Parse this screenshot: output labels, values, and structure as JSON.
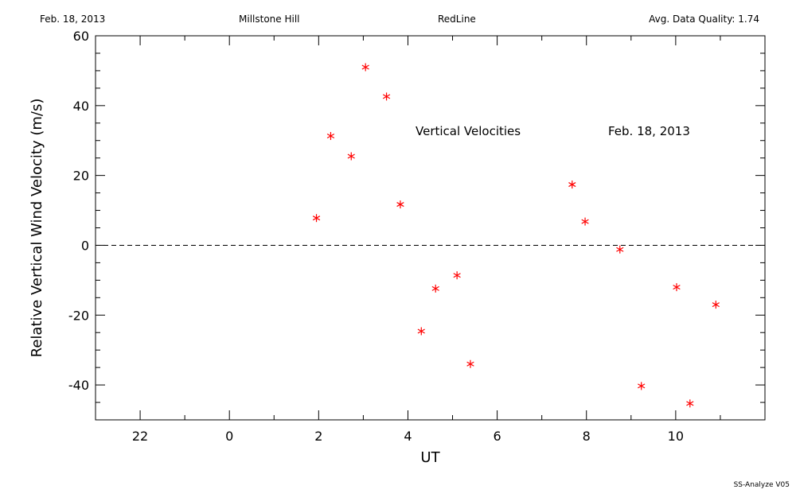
{
  "header": {
    "date": "Feb. 18, 2013",
    "site": "Millstone Hill",
    "instrument": "RedLine",
    "quality": "Avg. Data Quality: 1.74"
  },
  "footer": {
    "program": "SS-Analyze V05"
  },
  "chart_data": {
    "type": "scatter",
    "annotations": [
      "Vertical Velocities",
      "Feb. 18, 2013"
    ],
    "xlabel": "UT",
    "ylabel": "Relative Vertical Wind Velocity (m/s)",
    "x_is_ut_hours_wrapping_at_24": true,
    "xlim": [
      21,
      12
    ],
    "ylim": [
      -50,
      60
    ],
    "xticks": [
      "22",
      "0",
      "2",
      "4",
      "6",
      "8",
      "10"
    ],
    "yticks": [
      -40,
      -20,
      0,
      20,
      40,
      60
    ],
    "reference_line": {
      "y": 0,
      "style": "dashed"
    },
    "marker": "asterisk",
    "color": "#ff0000",
    "series": [
      {
        "points": [
          {
            "x": 1.95,
            "y": 7.8
          },
          {
            "x": 2.27,
            "y": 31.3
          },
          {
            "x": 2.73,
            "y": 25.5
          },
          {
            "x": 3.05,
            "y": 51.0
          },
          {
            "x": 3.52,
            "y": 42.6
          },
          {
            "x": 3.83,
            "y": 11.7
          },
          {
            "x": 4.3,
            "y": -24.6
          },
          {
            "x": 4.62,
            "y": -12.4
          },
          {
            "x": 5.1,
            "y": -8.6
          },
          {
            "x": 5.4,
            "y": -34.0
          },
          {
            "x": 7.68,
            "y": 17.4
          },
          {
            "x": 7.97,
            "y": 6.8
          },
          {
            "x": 8.75,
            "y": -1.2
          },
          {
            "x": 9.23,
            "y": -40.3
          },
          {
            "x": 10.02,
            "y": -12.0
          },
          {
            "x": 10.32,
            "y": -45.3
          },
          {
            "x": 10.9,
            "y": -17.0
          }
        ]
      }
    ]
  }
}
